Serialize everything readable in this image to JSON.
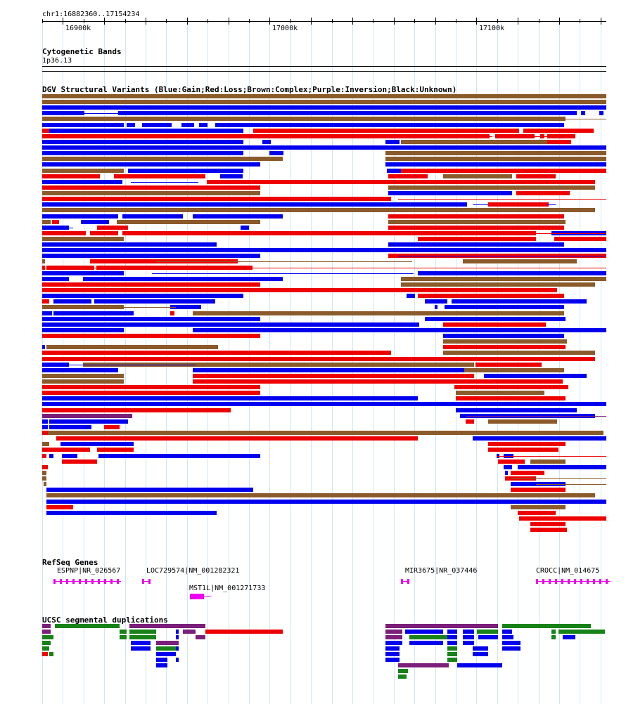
{
  "position": {
    "coords": "chr1:16882360..17154234"
  },
  "ruler": {
    "ticks": [
      "16900k",
      "17000k",
      "17100k"
    ]
  },
  "cytoband": {
    "title": "Cytogenetic Bands",
    "band": "1p36.13"
  },
  "dgv": {
    "title": "DGV Structural Variants (Blue:Gain;Red:Loss;Brown:Complex;Purple:Inversion;Black:Unknown)",
    "colors": {
      "gain": "#0000ee",
      "loss": "#ee0000",
      "complex": "#8b5a2b",
      "inversion": "#7b1f7b"
    }
  },
  "refseq": {
    "title": "RefSeq Genes",
    "genes": [
      {
        "label": "ESPNP|NR_026567"
      },
      {
        "label": "LOC729574|NM_001282321"
      },
      {
        "label": "MST1L|NM_001271733"
      },
      {
        "label": "MIR3675|NR_037446"
      },
      {
        "label": "CROCC|NM_014675"
      }
    ],
    "color": "#ee00ee"
  },
  "segdups": {
    "title": "UCSC segmental duplications",
    "colors": {
      "purple": "#7b1f7b",
      "green": "#178217",
      "blue": "#0000ee",
      "red": "#ee0000"
    }
  }
}
